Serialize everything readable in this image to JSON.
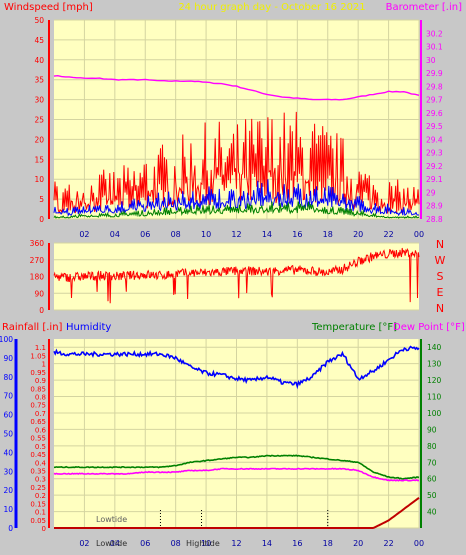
{
  "header": {
    "left": "Windspeed [mph]",
    "center": "24 hour graph day - October 16 2021",
    "right": "Barometer [.in]"
  },
  "colors": {
    "bg": "#c8c8c8",
    "plot_bg": "#ffffc0",
    "grid": "#d4d4a0",
    "red": "#ff0000",
    "blue": "#0000ff",
    "green": "#008000",
    "magenta": "#ff00ff",
    "title_yellow": "#f0f000",
    "dark_red": "#c00000"
  },
  "chart_data": [
    {
      "type": "line",
      "title": "24 hour graph day - October 16 2021",
      "left_axis": {
        "label": "Windspeed [mph]",
        "range": [
          0,
          50
        ],
        "ticks": [
          "0",
          "5",
          "10",
          "15",
          "20",
          "25",
          "30",
          "35",
          "40",
          "45",
          "50"
        ]
      },
      "right_axis": {
        "label": "Barometer [.in]",
        "range": [
          28.8,
          30.3
        ],
        "ticks": [
          "28.8",
          "28.9",
          "29",
          "29.1",
          "29.2",
          "29.3",
          "29.4",
          "29.5",
          "29.6",
          "29.7",
          "29.8",
          "29.9",
          "30",
          "30.1",
          "30.2"
        ]
      },
      "x_ticks": [
        "02",
        "04",
        "06",
        "08",
        "10",
        "12",
        "14",
        "16",
        "18",
        "20",
        "22",
        "00"
      ],
      "grid": true,
      "series": [
        {
          "color": "#ff00ff",
          "axis": "right",
          "x": [
            0,
            1,
            2,
            3,
            4,
            5,
            6,
            7,
            8,
            9,
            10,
            11,
            12,
            13,
            14,
            15,
            16,
            17,
            18,
            19,
            20,
            21,
            22,
            23,
            24
          ],
          "values": [
            29.88,
            29.87,
            29.86,
            29.86,
            29.85,
            29.85,
            29.85,
            29.84,
            29.84,
            29.84,
            29.83,
            29.82,
            29.8,
            29.77,
            29.74,
            29.72,
            29.71,
            29.7,
            29.7,
            29.7,
            29.72,
            29.74,
            29.76,
            29.76,
            29.73
          ]
        },
        {
          "color": "#ff0000",
          "x": [
            0,
            1,
            2,
            3,
            4,
            5,
            6,
            7,
            8,
            9,
            10,
            11,
            12,
            13,
            14,
            15,
            16,
            17,
            18,
            19,
            20,
            21,
            22,
            23,
            24
          ],
          "values": [
            6,
            5.5,
            6,
            7,
            7.5,
            8,
            10,
            11,
            11.5,
            13,
            14,
            14.5,
            14,
            15.5,
            16,
            16,
            16,
            15,
            14,
            12,
            9,
            7,
            6,
            5.5,
            5
          ]
        },
        {
          "color": "#0000ff",
          "x": [
            0,
            1,
            2,
            3,
            4,
            5,
            6,
            7,
            8,
            9,
            10,
            11,
            12,
            13,
            14,
            15,
            16,
            17,
            18,
            19,
            20,
            21,
            22,
            23,
            24
          ],
          "values": [
            2,
            2,
            2.5,
            3,
            3,
            3.5,
            4,
            4.5,
            4.5,
            5,
            5.5,
            5.5,
            5.5,
            6,
            6.5,
            6.5,
            6.5,
            6,
            5.5,
            5,
            4,
            3,
            2.5,
            2,
            2
          ]
        },
        {
          "color": "#008000",
          "x": [
            0,
            1,
            2,
            3,
            4,
            5,
            6,
            7,
            8,
            9,
            10,
            11,
            12,
            13,
            14,
            15,
            16,
            17,
            18,
            19,
            20,
            21,
            22,
            23,
            24
          ],
          "values": [
            0.5,
            0.5,
            1,
            1,
            1,
            1.5,
            1.5,
            2,
            2,
            2.5,
            2.5,
            2.5,
            2.5,
            3,
            3,
            3,
            3,
            3,
            2.5,
            2,
            1.5,
            1,
            0.5,
            0.5,
            0.5
          ]
        }
      ]
    },
    {
      "type": "line",
      "y_range": [
        0,
        360
      ],
      "left_ticks": [
        "0",
        "90",
        "180",
        "270",
        "360"
      ],
      "right_labels": [
        "N",
        "W",
        "S",
        "E",
        "N"
      ],
      "series": [
        {
          "color": "#ff0000",
          "x": [
            0,
            1,
            2,
            3,
            4,
            5,
            6,
            7,
            8,
            9,
            10,
            11,
            12,
            13,
            14,
            15,
            16,
            17,
            18,
            19,
            20,
            21,
            22,
            23,
            24
          ],
          "values": [
            180,
            175,
            180,
            185,
            180,
            185,
            190,
            185,
            195,
            200,
            200,
            205,
            210,
            210,
            205,
            215,
            215,
            210,
            200,
            220,
            260,
            290,
            300,
            310,
            300
          ]
        }
      ]
    },
    {
      "type": "line",
      "left_axis_1": {
        "label": "Rainfall [.in]",
        "range": [
          0,
          100
        ],
        "ticks": [
          "0",
          "10",
          "20",
          "30",
          "40",
          "50",
          "60",
          "70",
          "80",
          "90",
          "100"
        ]
      },
      "left_axis_2": {
        "label": "Humidity",
        "range": [
          0,
          1.15
        ],
        "ticks": [
          "0",
          "0.05",
          "0.1",
          "0.15",
          "0.2",
          "0.25",
          "0.3",
          "0.35",
          "0.4",
          "0.45",
          "0.5",
          "0.55",
          "0.6",
          "0.65",
          "0.7",
          "0.75",
          "0.8",
          "0.85",
          "0.9",
          "0.95",
          "1",
          "1.05",
          "1.1"
        ]
      },
      "right_axis": {
        "label_temperature": "Temperature [°F]",
        "label_dewpoint": "Dew Point [°F]",
        "range": [
          30,
          145
        ],
        "ticks": [
          "40",
          "50",
          "60",
          "70",
          "80",
          "90",
          "100",
          "110",
          "120",
          "130",
          "140"
        ]
      },
      "x_ticks": [
        "02",
        "04",
        "06",
        "08",
        "10",
        "12",
        "14",
        "16",
        "18",
        "20",
        "22",
        "00"
      ],
      "annotations": {
        "lowtide_top": "Lowtide",
        "lowtide_bottom": "Lowtide",
        "hightide_bottom": "Hightide"
      },
      "series": [
        {
          "name": "Humidity",
          "color": "#0000ff",
          "axis": "left_1",
          "x": [
            0,
            1,
            2,
            3,
            4,
            5,
            6,
            7,
            8,
            9,
            10,
            11,
            12,
            13,
            14,
            15,
            16,
            17,
            18,
            19,
            20,
            21,
            22,
            23,
            24
          ],
          "values": [
            93,
            92,
            92,
            92,
            92,
            92,
            92,
            92,
            90,
            85,
            82,
            81,
            79,
            78,
            80,
            77,
            76,
            80,
            88,
            92,
            79,
            83,
            89,
            95,
            95
          ]
        },
        {
          "name": "Temperature",
          "color": "#008000",
          "axis": "right",
          "x": [
            0,
            1,
            2,
            3,
            4,
            5,
            6,
            7,
            8,
            9,
            10,
            11,
            12,
            13,
            14,
            15,
            16,
            17,
            18,
            19,
            20,
            21,
            22,
            23,
            24
          ],
          "values": [
            67,
            67,
            67,
            67,
            67,
            67,
            67,
            67,
            68,
            70,
            71,
            72,
            73,
            73,
            74,
            74,
            74,
            73,
            72,
            71,
            70,
            64,
            61,
            60,
            61
          ]
        },
        {
          "name": "Dew Point",
          "color": "#ff00ff",
          "axis": "right",
          "x": [
            0,
            1,
            2,
            3,
            4,
            5,
            6,
            7,
            8,
            9,
            10,
            11,
            12,
            13,
            14,
            15,
            16,
            17,
            18,
            19,
            20,
            21,
            22,
            23,
            24
          ],
          "values": [
            63,
            63,
            63,
            63,
            63,
            63,
            64,
            64,
            64,
            65,
            65,
            66,
            66,
            66,
            66,
            66,
            66,
            66,
            66,
            66,
            65,
            61,
            59,
            59,
            59
          ]
        },
        {
          "name": "Rainfall",
          "color": "#c00000",
          "axis": "left_1",
          "x": [
            0,
            1,
            2,
            3,
            4,
            5,
            6,
            7,
            8,
            9,
            10,
            11,
            12,
            13,
            14,
            15,
            16,
            17,
            18,
            19,
            20,
            21,
            22,
            23,
            24
          ],
          "values": [
            0,
            0,
            0,
            0,
            0,
            0,
            0,
            0,
            0,
            0,
            0,
            0,
            0,
            0,
            0,
            0,
            0,
            0,
            0,
            0,
            0,
            0,
            4,
            10,
            16
          ]
        }
      ]
    }
  ]
}
